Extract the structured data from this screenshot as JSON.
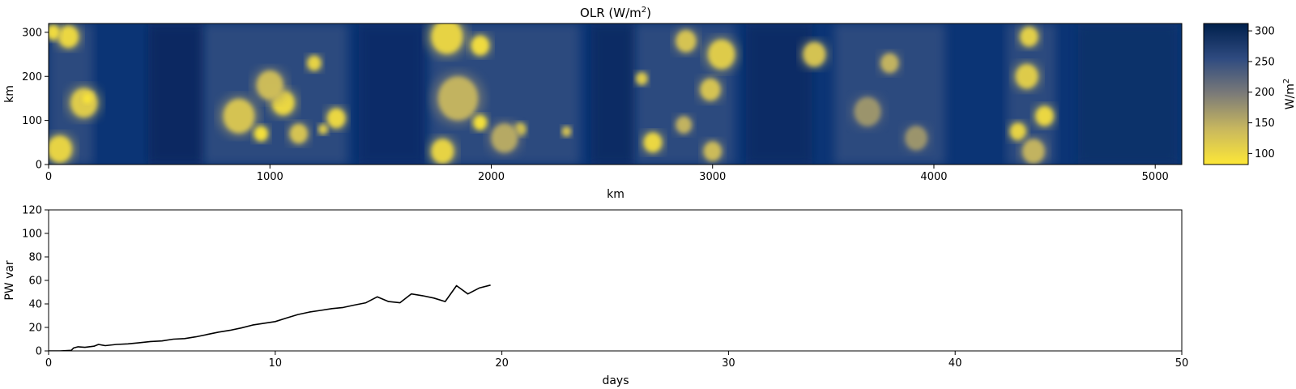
{
  "chart_data": [
    {
      "type": "heatmap",
      "title": "OLR (W/m",
      "title_superscript": "2",
      "title_suffix": ")",
      "xlabel": "km",
      "ylabel": "km",
      "xlim": [
        0,
        5120
      ],
      "ylim": [
        0,
        320
      ],
      "xticks": [
        0,
        1000,
        2000,
        3000,
        4000,
        5000
      ],
      "xtick_labels": [
        "0",
        "1000",
        "2000",
        "3000",
        "4000",
        "5000"
      ],
      "yticks": [
        0,
        100,
        200,
        300
      ],
      "ytick_labels": [
        "0",
        "100",
        "200",
        "300"
      ],
      "colormap": "cividis (reversed)",
      "low_color": "#fde737",
      "mid_color": "#7c7b78",
      "high_color": "#00204c",
      "colorbar": {
        "label": "W/m",
        "label_superscript": "2",
        "range": [
          82,
          312
        ],
        "ticks": [
          100,
          150,
          200,
          250,
          300
        ],
        "tick_labels": [
          "100",
          "150",
          "200",
          "250",
          "300"
        ]
      },
      "convective_bands_km": [
        {
          "x_start": 0,
          "x_end": 200
        },
        {
          "x_start": 700,
          "x_end": 1350
        },
        {
          "x_start": 1720,
          "x_end": 2400
        },
        {
          "x_start": 2650,
          "x_end": 3100
        },
        {
          "x_start": 3550,
          "x_end": 4050
        },
        {
          "x_start": 4330,
          "x_end": 4550
        }
      ],
      "cells": [
        {
          "x": 90,
          "y": 290,
          "r": 45,
          "v": 95
        },
        {
          "x": 20,
          "y": 300,
          "r": 30,
          "v": 90
        },
        {
          "x": 160,
          "y": 140,
          "r": 60,
          "v": 110
        },
        {
          "x": 175,
          "y": 150,
          "r": 22,
          "v": 85
        },
        {
          "x": 50,
          "y": 35,
          "r": 55,
          "v": 100
        },
        {
          "x": 860,
          "y": 110,
          "r": 70,
          "v": 120
        },
        {
          "x": 960,
          "y": 70,
          "r": 30,
          "v": 85
        },
        {
          "x": 1060,
          "y": 140,
          "r": 50,
          "v": 95
        },
        {
          "x": 1000,
          "y": 180,
          "r": 60,
          "v": 130
        },
        {
          "x": 1200,
          "y": 230,
          "r": 30,
          "v": 100
        },
        {
          "x": 1130,
          "y": 70,
          "r": 40,
          "v": 120
        },
        {
          "x": 1300,
          "y": 105,
          "r": 40,
          "v": 95
        },
        {
          "x": 1240,
          "y": 80,
          "r": 20,
          "v": 110
        },
        {
          "x": 1800,
          "y": 290,
          "r": 70,
          "v": 100
        },
        {
          "x": 1950,
          "y": 270,
          "r": 40,
          "v": 90
        },
        {
          "x": 1850,
          "y": 150,
          "r": 90,
          "v": 140
        },
        {
          "x": 1950,
          "y": 95,
          "r": 30,
          "v": 85
        },
        {
          "x": 1780,
          "y": 30,
          "r": 50,
          "v": 100
        },
        {
          "x": 2130,
          "y": 80,
          "r": 25,
          "v": 105
        },
        {
          "x": 2340,
          "y": 75,
          "r": 20,
          "v": 120
        },
        {
          "x": 2060,
          "y": 60,
          "r": 60,
          "v": 150
        },
        {
          "x": 2730,
          "y": 50,
          "r": 40,
          "v": 95
        },
        {
          "x": 2880,
          "y": 280,
          "r": 45,
          "v": 120
        },
        {
          "x": 3040,
          "y": 250,
          "r": 60,
          "v": 110
        },
        {
          "x": 2990,
          "y": 170,
          "r": 45,
          "v": 120
        },
        {
          "x": 2870,
          "y": 90,
          "r": 35,
          "v": 140
        },
        {
          "x": 3000,
          "y": 30,
          "r": 40,
          "v": 130
        },
        {
          "x": 2680,
          "y": 195,
          "r": 25,
          "v": 110
        },
        {
          "x": 3460,
          "y": 250,
          "r": 50,
          "v": 120
        },
        {
          "x": 3800,
          "y": 230,
          "r": 40,
          "v": 140
        },
        {
          "x": 3700,
          "y": 120,
          "r": 60,
          "v": 170
        },
        {
          "x": 3920,
          "y": 60,
          "r": 50,
          "v": 170
        },
        {
          "x": 4430,
          "y": 290,
          "r": 40,
          "v": 105
        },
        {
          "x": 4420,
          "y": 200,
          "r": 50,
          "v": 110
        },
        {
          "x": 4500,
          "y": 110,
          "r": 40,
          "v": 95
        },
        {
          "x": 4380,
          "y": 75,
          "r": 35,
          "v": 100
        },
        {
          "x": 4450,
          "y": 30,
          "r": 50,
          "v": 140
        }
      ]
    },
    {
      "type": "line",
      "xlabel": "days",
      "ylabel": "PW var",
      "xlim": [
        0,
        50
      ],
      "ylim": [
        0,
        120
      ],
      "xticks": [
        0,
        10,
        20,
        30,
        40,
        50
      ],
      "xtick_labels": [
        "0",
        "10",
        "20",
        "30",
        "40",
        "50"
      ],
      "yticks": [
        0,
        20,
        40,
        60,
        80,
        100,
        120
      ],
      "ytick_labels": [
        "0",
        "20",
        "40",
        "60",
        "80",
        "100",
        "120"
      ],
      "line_color": "#000000",
      "x": [
        0,
        0.5,
        1.0,
        1.1,
        1.3,
        1.6,
        2.0,
        2.2,
        2.5,
        3.0,
        3.5,
        4.0,
        4.5,
        5.0,
        5.5,
        6.0,
        6.5,
        7.0,
        7.5,
        8.0,
        8.5,
        9.0,
        9.5,
        10.0,
        10.5,
        11.0,
        11.5,
        12.0,
        12.5,
        13.0,
        13.5,
        14.0,
        14.5,
        15.0,
        15.5,
        16.0,
        16.5,
        17.0,
        17.5,
        18.0,
        18.5,
        19.0,
        19.5
      ],
      "y": [
        0,
        0,
        0.5,
        2.5,
        3.5,
        3.0,
        4.0,
        5.5,
        4.5,
        5.5,
        6.0,
        7.0,
        8.0,
        8.5,
        10.0,
        10.5,
        12.0,
        14.0,
        16.0,
        17.5,
        19.5,
        22.0,
        23.5,
        25.0,
        28.0,
        31.0,
        33.0,
        34.5,
        36.0,
        37.0,
        39.0,
        41.0,
        46.0,
        42.0,
        41.0,
        48.5,
        47.0,
        45.0,
        42.0,
        55.5,
        48.5,
        53.5,
        56.0
      ]
    }
  ]
}
